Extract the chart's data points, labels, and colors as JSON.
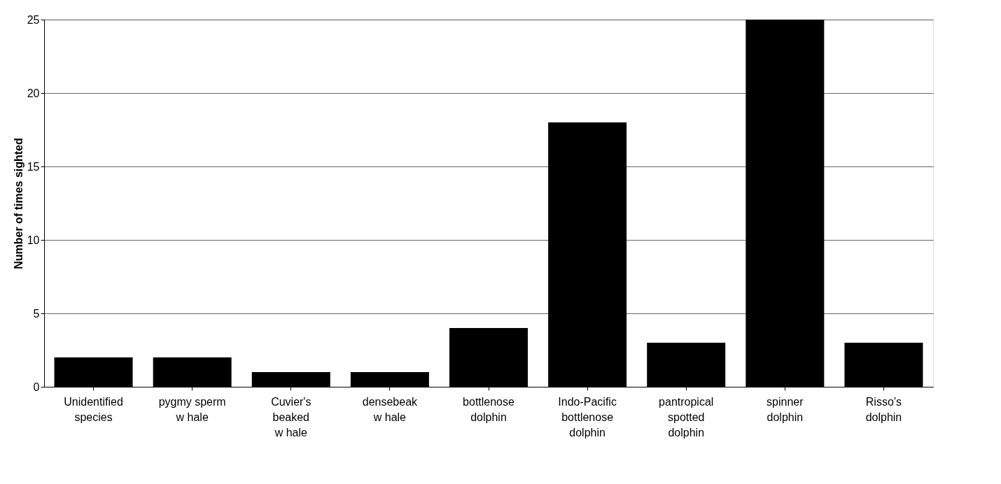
{
  "chart_data": {
    "type": "bar",
    "ylabel": "Number of times sighted",
    "categories": [
      "Unidentified\nspecies",
      "pygmy sperm\nw hale",
      "Cuvier's\nbeaked\nw hale",
      "densebeak\nw hale",
      "bottlenose\ndolphin",
      "Indo-Pacific\nbottlenose\ndolphin",
      "pantropical\nspotted\ndolphin",
      "spinner\ndolphin",
      "Risso’s\ndolphin"
    ],
    "values": [
      2,
      2,
      1,
      1,
      4,
      18,
      3,
      25,
      3
    ],
    "color": "#000000",
    "ylim": [
      0,
      25
    ],
    "yticks": [
      0,
      5,
      10,
      15,
      20,
      25
    ],
    "grid": "y"
  }
}
